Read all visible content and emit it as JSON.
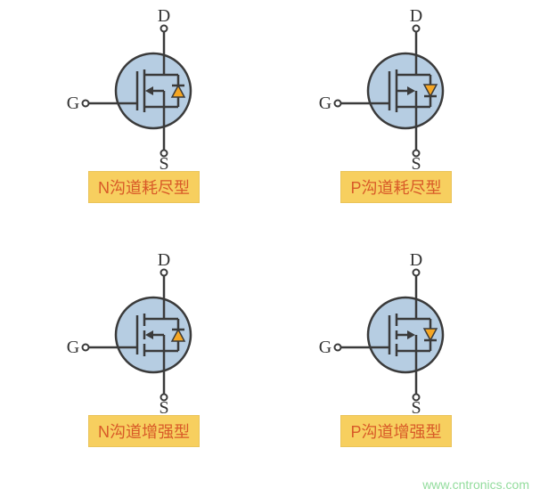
{
  "colors": {
    "circle_fill": "#b6cde2",
    "stroke": "#3a3a3a",
    "diode_fill": "#f5a623",
    "label_bg": "#f7cf5f",
    "label_text": "#d85a28",
    "pin_text": "#333333",
    "gate_circle_fill": "#ffffff"
  },
  "stroke_width": 2.5,
  "pin_labels": {
    "drain": "D",
    "source": "S",
    "gate": "G"
  },
  "cells": [
    {
      "label": "N沟道耗尽型",
      "channel": "N",
      "mode": "depletion",
      "arrow_dir": "in",
      "diode_arrow": "up",
      "gate_broken": false
    },
    {
      "label": "P沟道耗尽型",
      "channel": "P",
      "mode": "depletion",
      "arrow_dir": "out",
      "diode_arrow": "down",
      "gate_broken": false
    },
    {
      "label": "N沟道增强型",
      "channel": "N",
      "mode": "enhancement",
      "arrow_dir": "in",
      "diode_arrow": "up",
      "gate_broken": true
    },
    {
      "label": "P沟道增强型",
      "channel": "P",
      "mode": "enhancement",
      "arrow_dir": "out",
      "diode_arrow": "down",
      "gate_broken": true
    }
  ],
  "watermark": "www.cntronics.com"
}
